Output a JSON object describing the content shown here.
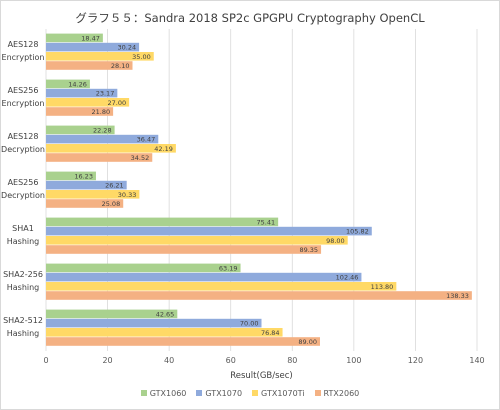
{
  "chart_data": {
    "type": "bar",
    "orientation": "horizontal",
    "title": "グラフ５５：Sandra 2018 SP2c GPGPU Cryptography OpenCL",
    "xlabel": "Result(GB/sec)",
    "ylabel": "",
    "xlim": [
      0,
      140
    ],
    "xticks": [
      "0",
      "20",
      "40",
      "60",
      "80",
      "100",
      "120",
      "140"
    ],
    "grid": true,
    "legend_position": "bottom",
    "categories": [
      [
        "AES128",
        "Encryption"
      ],
      [
        "AES256",
        "Encryption"
      ],
      [
        "AES128",
        "Decryption"
      ],
      [
        "AES256",
        "Decryption"
      ],
      [
        "SHA1",
        "Hashing"
      ],
      [
        "SHA2-256",
        "Hashing"
      ],
      [
        "SHA2-512",
        "Hashing"
      ]
    ],
    "series": [
      {
        "name": "GTX1060",
        "color": "#a9d18e",
        "values": [
          18.47,
          14.26,
          22.28,
          16.23,
          75.41,
          63.19,
          42.65
        ],
        "labels": [
          "18.47",
          "14.26",
          "22.28",
          "16.23",
          "75.41",
          "63.19",
          "42.65"
        ]
      },
      {
        "name": "GTX1070",
        "color": "#8faadc",
        "values": [
          30.24,
          23.17,
          36.47,
          26.21,
          105.82,
          102.46,
          70.0
        ],
        "labels": [
          "30.24",
          "23.17",
          "36.47",
          "26.21",
          "105.82",
          "102.46",
          "70.00"
        ]
      },
      {
        "name": "GTX1070Ti",
        "color": "#ffd966",
        "values": [
          35.0,
          27.0,
          42.19,
          30.33,
          98.0,
          113.8,
          76.84
        ],
        "labels": [
          "35.00",
          "27.00",
          "42.19",
          "30.33",
          "98.00",
          "113.80",
          "76.84"
        ]
      },
      {
        "name": "RTX2060",
        "color": "#f4b183",
        "values": [
          28.1,
          21.8,
          34.52,
          25.08,
          89.35,
          138.33,
          89.0
        ],
        "labels": [
          "28.10",
          "21.80",
          "34.52",
          "25.08",
          "89.35",
          "138.33",
          "89.00"
        ]
      }
    ]
  }
}
